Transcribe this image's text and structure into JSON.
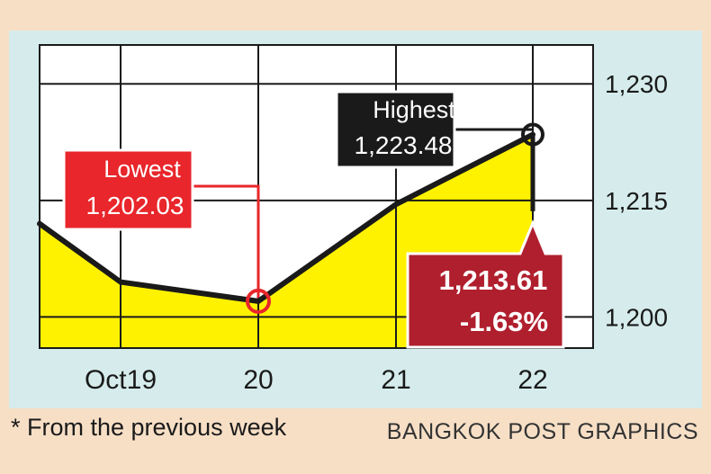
{
  "chart_data": {
    "type": "area",
    "categories": [
      "Oct19",
      "20",
      "21",
      "22"
    ],
    "points": [
      {
        "x": "Oct19 (open)",
        "y": 1212
      },
      {
        "x": "Oct19",
        "y": 1204.5
      },
      {
        "x": "20",
        "y": 1202.03
      },
      {
        "x": "21",
        "y": 1214.5
      },
      {
        "x": "22",
        "y": 1223.48
      }
    ],
    "close": 1213.61,
    "ylim": [
      1196,
      1235
    ],
    "yticks": [
      1200,
      1215,
      1230
    ],
    "ytick_labels": [
      "1,200",
      "1,215",
      "1,230"
    ],
    "grid": true,
    "fill_color": "#fff200",
    "line_color": "#1a1a1a",
    "annotations": {
      "lowest": {
        "title": "Lowest",
        "value": "1,202.03",
        "color": "#e8262b"
      },
      "highest": {
        "title": "Highest",
        "value": "1,223.48",
        "color": "#1a1a1a"
      },
      "close": {
        "value": "1,213.61",
        "change": "-1.63%",
        "color": "#b01f2e"
      }
    }
  },
  "footnote": "* From the previous week",
  "credit": "BANGKOK POST GRAPHICS"
}
